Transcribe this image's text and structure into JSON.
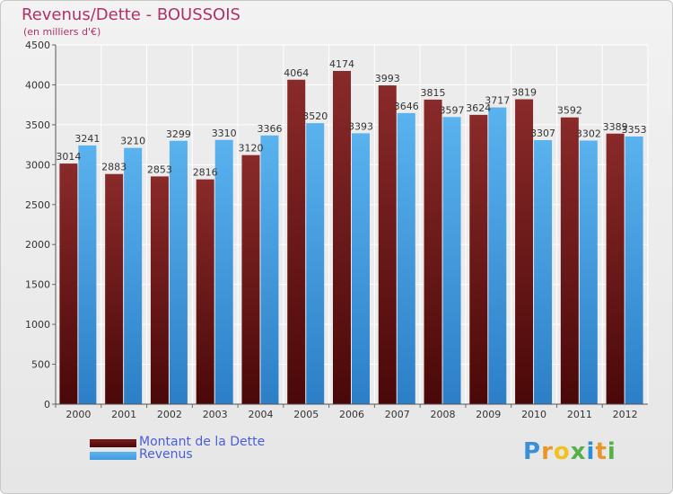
{
  "header": {
    "title": "Revenus/Dette - BOUSSOIS",
    "subtitle": "(en milliers d'€)"
  },
  "chart_data": {
    "type": "bar",
    "categories": [
      "2000",
      "2001",
      "2002",
      "2003",
      "2004",
      "2005",
      "2006",
      "2007",
      "2008",
      "2009",
      "2010",
      "2011",
      "2012"
    ],
    "series": [
      {
        "name": "Montant de la Dette",
        "color": "#7a1a1a",
        "values": [
          3014,
          2883,
          2853,
          2816,
          3120,
          4064,
          4174,
          3993,
          3815,
          3624,
          3819,
          3592,
          3389
        ]
      },
      {
        "name": "Revenus",
        "color": "#3f9be0",
        "values": [
          3241,
          3210,
          3299,
          3310,
          3366,
          3520,
          3393,
          3646,
          3597,
          3717,
          3307,
          3302,
          3353
        ]
      }
    ],
    "yticks": [
      0,
      500,
      1000,
      1500,
      2000,
      2500,
      3000,
      3500,
      4000,
      4500
    ],
    "ylim": [
      0,
      4500
    ],
    "grid": true,
    "legend_position": "bottom-left"
  },
  "legend": {
    "items": [
      {
        "label": "Montant de la Dette",
        "color": "#7a1a1a"
      },
      {
        "label": "Revenus",
        "color": "#3f9be0"
      }
    ]
  },
  "brand": {
    "letters": [
      "P",
      "r",
      "o",
      "x",
      "i",
      "t",
      "i"
    ],
    "colors": [
      "#3b8fd6",
      "#e8962a",
      "#f2c11e",
      "#55b047",
      "#2a8fd6",
      "#e8962a",
      "#55b047"
    ]
  }
}
